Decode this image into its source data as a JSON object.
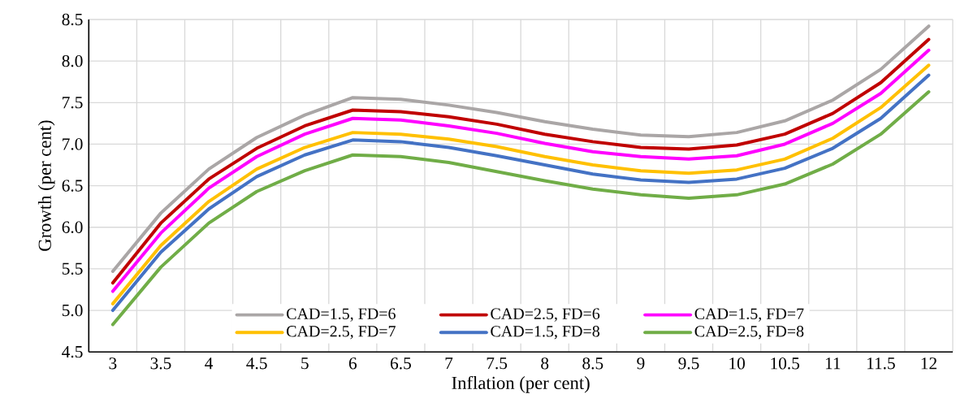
{
  "chart_data": {
    "type": "line",
    "xlabel": "Inflation (per cent)",
    "ylabel": "Growth (per cent)",
    "categories": [
      "3",
      "3.5",
      "4",
      "4.5",
      "5",
      "6",
      "6.5",
      "7",
      "7.5",
      "8",
      "8.5",
      "9",
      "9.5",
      "10",
      "10.5",
      "11",
      "11.5",
      "12"
    ],
    "ylim": [
      4.5,
      8.5
    ],
    "yticks": [
      4.5,
      {
        "value": 5,
        "label": "5.0"
      },
      5.5,
      {
        "value": 6,
        "label": "6.0"
      },
      6.5,
      {
        "value": 7,
        "label": "7.0"
      },
      7.5,
      {
        "value": 8,
        "label": "8.0"
      },
      8.5
    ],
    "grid": true,
    "legend": "bottom",
    "marker": "none",
    "line_style": "solid",
    "series": [
      {
        "name": "CAD=1.5, FD=6",
        "color": "#aaa6a6",
        "values": [
          5.47,
          6.17,
          6.7,
          7.08,
          7.35,
          7.56,
          7.54,
          7.47,
          7.38,
          7.27,
          7.18,
          7.11,
          7.09,
          7.14,
          7.28,
          7.53,
          7.9,
          8.42
        ]
      },
      {
        "name": "CAD=2.5, FD=6",
        "color": "#c00000",
        "values": [
          5.33,
          6.05,
          6.58,
          6.95,
          7.22,
          7.41,
          7.39,
          7.33,
          7.24,
          7.12,
          7.03,
          6.96,
          6.94,
          6.99,
          7.12,
          7.37,
          7.74,
          8.26
        ]
      },
      {
        "name": "CAD=1.5, FD=7",
        "color": "#ff00ff",
        "values": [
          5.23,
          5.93,
          6.47,
          6.85,
          7.12,
          7.31,
          7.29,
          7.22,
          7.13,
          7.01,
          6.91,
          6.85,
          6.82,
          6.86,
          7.0,
          7.25,
          7.61,
          8.13
        ]
      },
      {
        "name": "CAD=2.5, FD=7",
        "color": "#ffc000",
        "values": [
          5.08,
          5.78,
          6.31,
          6.7,
          6.96,
          7.14,
          7.12,
          7.06,
          6.97,
          6.85,
          6.75,
          6.68,
          6.65,
          6.69,
          6.82,
          7.07,
          7.44,
          7.95
        ]
      },
      {
        "name": "CAD=1.5, FD=8",
        "color": "#4472c4",
        "values": [
          5.0,
          5.7,
          6.22,
          6.61,
          6.87,
          7.05,
          7.03,
          6.96,
          6.86,
          6.75,
          6.64,
          6.57,
          6.54,
          6.58,
          6.71,
          6.95,
          7.31,
          7.83
        ]
      },
      {
        "name": "CAD=2.5, FD=8",
        "color": "#70ad47",
        "values": [
          4.83,
          5.52,
          6.05,
          6.43,
          6.68,
          6.87,
          6.85,
          6.78,
          6.67,
          6.56,
          6.46,
          6.39,
          6.35,
          6.39,
          6.52,
          6.76,
          7.12,
          7.63
        ]
      }
    ]
  }
}
